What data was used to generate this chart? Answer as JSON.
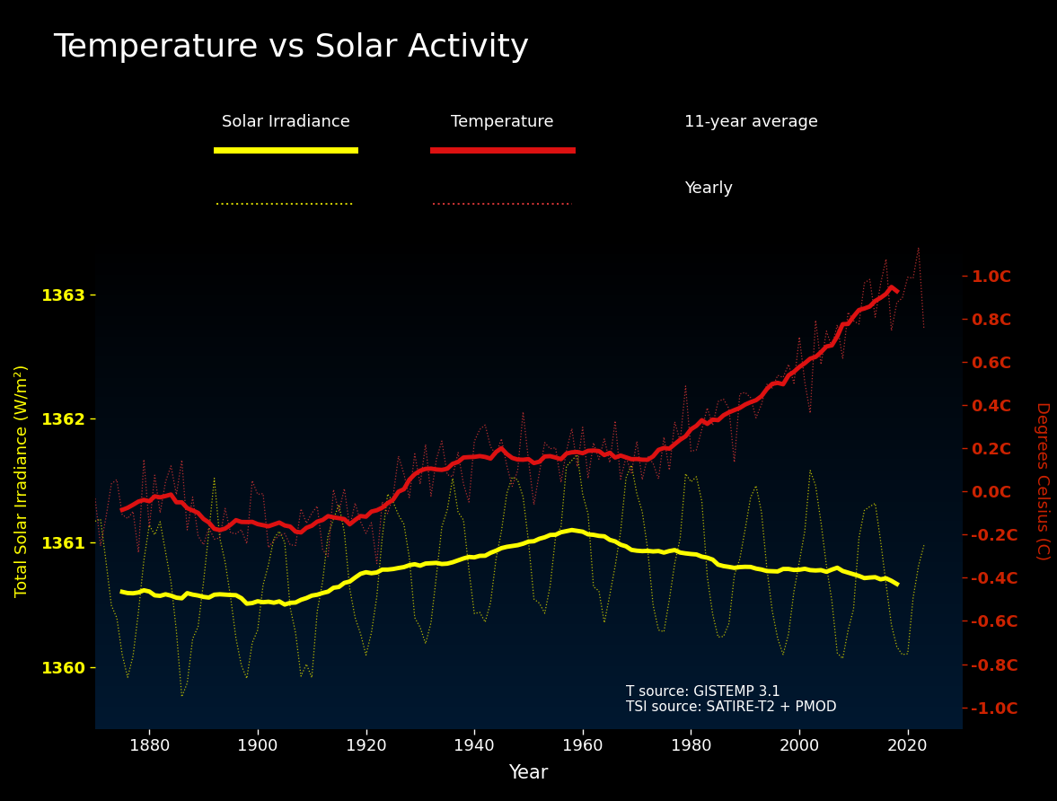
{
  "title": "Temperature vs Solar Activity",
  "xlabel": "Year",
  "ylabel_left": "Total Solar Irradiance (W/m²)",
  "ylabel_right": "Degrees Celsius (C)",
  "title_color": "#ffffff",
  "title_fontsize": 26,
  "axis_color": "#ffffff",
  "tick_color": "#ffffff",
  "solar_smooth_color": "#ffff00",
  "solar_yearly_color": "#cccc00",
  "temp_smooth_color": "#dd1111",
  "temp_yearly_color": "#cc3333",
  "right_axis_color": "#cc2200",
  "annotation_color": "#ffffff",
  "annotation_text": "T source: GISTEMP 3.1\nTSI source: SATIRE-T2 + PMOD",
  "xlim": [
    1870,
    2030
  ],
  "ylim_left": [
    1359.5,
    1363.5
  ],
  "ylim_right": [
    -1.1,
    1.2
  ],
  "yticks_left": [
    1360,
    1361,
    1362,
    1363
  ],
  "yticks_right": [
    -1.0,
    -0.8,
    -0.6,
    -0.4,
    -0.2,
    0.0,
    0.2,
    0.4,
    0.6,
    0.8,
    1.0
  ],
  "xticks": [
    1880,
    1900,
    1920,
    1940,
    1960,
    1980,
    2000,
    2020
  ],
  "solar_smooth_lw": 3.5,
  "solar_yearly_lw": 0.9,
  "temp_smooth_lw": 3.5,
  "temp_yearly_lw": 0.9
}
